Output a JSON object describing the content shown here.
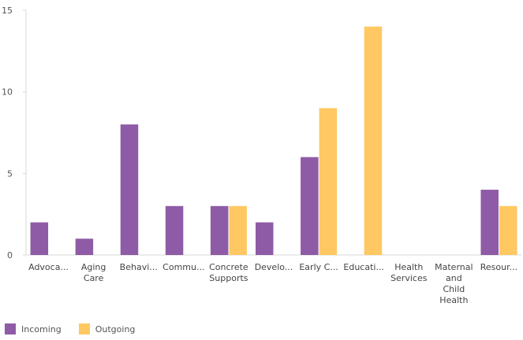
{
  "chart_data": {
    "type": "bar",
    "categories": [
      "Advoca...",
      "Aging\nCare",
      "Behavi...",
      "Commu...",
      "Concrete\nSupports",
      "Develo...",
      "Early C...",
      "Educati...",
      "Health\nServices",
      "Maternal\nand\nChild\nHealth",
      "Resour..."
    ],
    "series": [
      {
        "name": "Incoming",
        "color": "#8e5ba6",
        "values": [
          2,
          1,
          8,
          3,
          3,
          2,
          6,
          0,
          0,
          0,
          4
        ]
      },
      {
        "name": "Outgoing",
        "color": "#ffc862",
        "values": [
          0,
          0,
          0,
          0,
          3,
          0,
          9,
          14,
          0,
          0,
          3
        ]
      }
    ],
    "yticks": [
      0,
      5,
      10,
      15
    ],
    "ylim": [
      0,
      15
    ],
    "grid": false,
    "legend_position": "bottom-left",
    "title": "",
    "xlabel": "",
    "ylabel": ""
  }
}
